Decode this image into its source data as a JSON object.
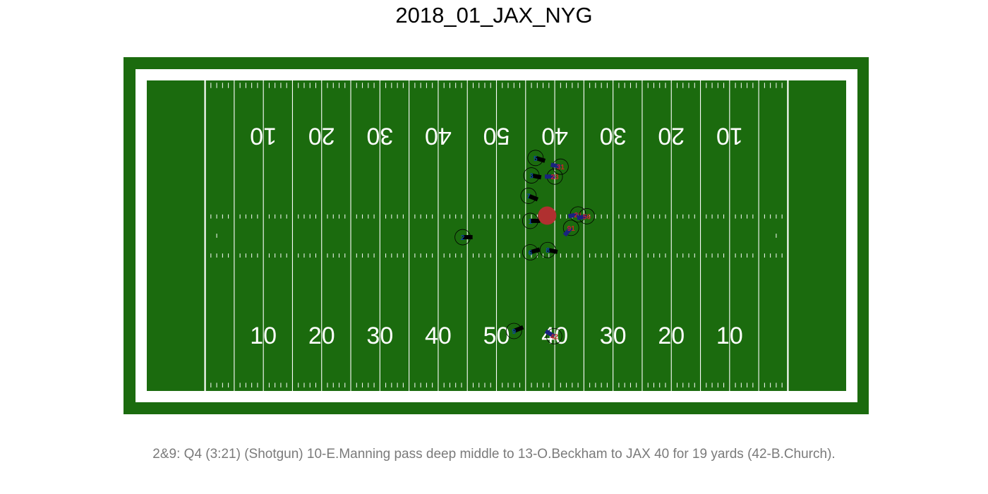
{
  "title": "2018_01_JAX_NYG",
  "caption": "2&9: Q4 (3:21) (Shotgun) 10-E.Manning pass deep middle to 13-O.Beckham to JAX 40 for 19 yards (42-B.Church).",
  "colors": {
    "field_outer": "#1b6b0e",
    "field_inner": "#1b6b0e",
    "border": "#ffffff",
    "line": "#ffffff",
    "team_a_dir": "#000000",
    "team_b_dir": "#1a237e",
    "team_b_text": "#c62828",
    "team_a_text": "#0d47a1",
    "ball": "#b03030"
  },
  "yard_labels_top": [
    "10",
    "20",
    "30",
    "40",
    "50",
    "40",
    "30",
    "20",
    "10"
  ],
  "yard_labels_bottom": [
    "10",
    "20",
    "30",
    "40",
    "50",
    "40",
    "30",
    "20",
    "10"
  ],
  "chart_data": {
    "type": "scatter",
    "x_units": "yards from left end line (0-120)",
    "y_units": "yards from bottom sideline (0-53.3)",
    "xlim": [
      0,
      120
    ],
    "ylim": [
      0,
      53.3
    ],
    "ball": {
      "x": 68.7,
      "y": 30.1
    },
    "players": [
      {
        "team": "a",
        "jersey": "2",
        "x": 54.2,
        "y": 26.4,
        "dir_x": 1.0,
        "dir_y": 0.0
      },
      {
        "team": "a",
        "jersey": "5",
        "x": 66.7,
        "y": 40.0,
        "dir_x": 1.0,
        "dir_y": -0.3
      },
      {
        "team": "a",
        "jersey": "3",
        "x": 66.0,
        "y": 37.0,
        "dir_x": 1.0,
        "dir_y": -0.2
      },
      {
        "team": "a",
        "jersey": "7",
        "x": 65.5,
        "y": 33.5,
        "dir_x": 1.0,
        "dir_y": -0.4
      },
      {
        "team": "a",
        "jersey": "1",
        "x": 65.8,
        "y": 29.2,
        "dir_x": 1.0,
        "dir_y": 0.0
      },
      {
        "team": "a",
        "jersey": "6",
        "x": 65.8,
        "y": 23.8,
        "dir_x": 1.0,
        "dir_y": 0.3
      },
      {
        "team": "a",
        "jersey": "8",
        "x": 68.8,
        "y": 24.2,
        "dir_x": 1.0,
        "dir_y": -0.2
      },
      {
        "team": "a",
        "jersey": "9",
        "x": 63.0,
        "y": 10.3,
        "dir_x": 1.0,
        "dir_y": 0.4
      },
      {
        "team": "b",
        "jersey": "31",
        "x": 71.0,
        "y": 38.5,
        "dir_x": -1.0,
        "dir_y": 0.2
      },
      {
        "team": "b",
        "jersey": "23",
        "x": 70.0,
        "y": 36.8,
        "dir_x": -1.0,
        "dir_y": 0.0
      },
      {
        "team": "b",
        "jersey": "21",
        "x": 74.0,
        "y": 30.3,
        "dir_x": -1.0,
        "dir_y": -0.2
      },
      {
        "team": "b",
        "jersey": "56",
        "x": 75.5,
        "y": 30.0,
        "dir_x": -1.0,
        "dir_y": -0.2
      },
      {
        "team": "b",
        "jersey": "91",
        "x": 72.8,
        "y": 28.0,
        "dir_x": -0.7,
        "dir_y": -0.8
      },
      {
        "team": "b",
        "jersey": "42",
        "x": 69.9,
        "y": 9.4,
        "dir_x": -1.0,
        "dir_y": 0.6
      }
    ]
  }
}
